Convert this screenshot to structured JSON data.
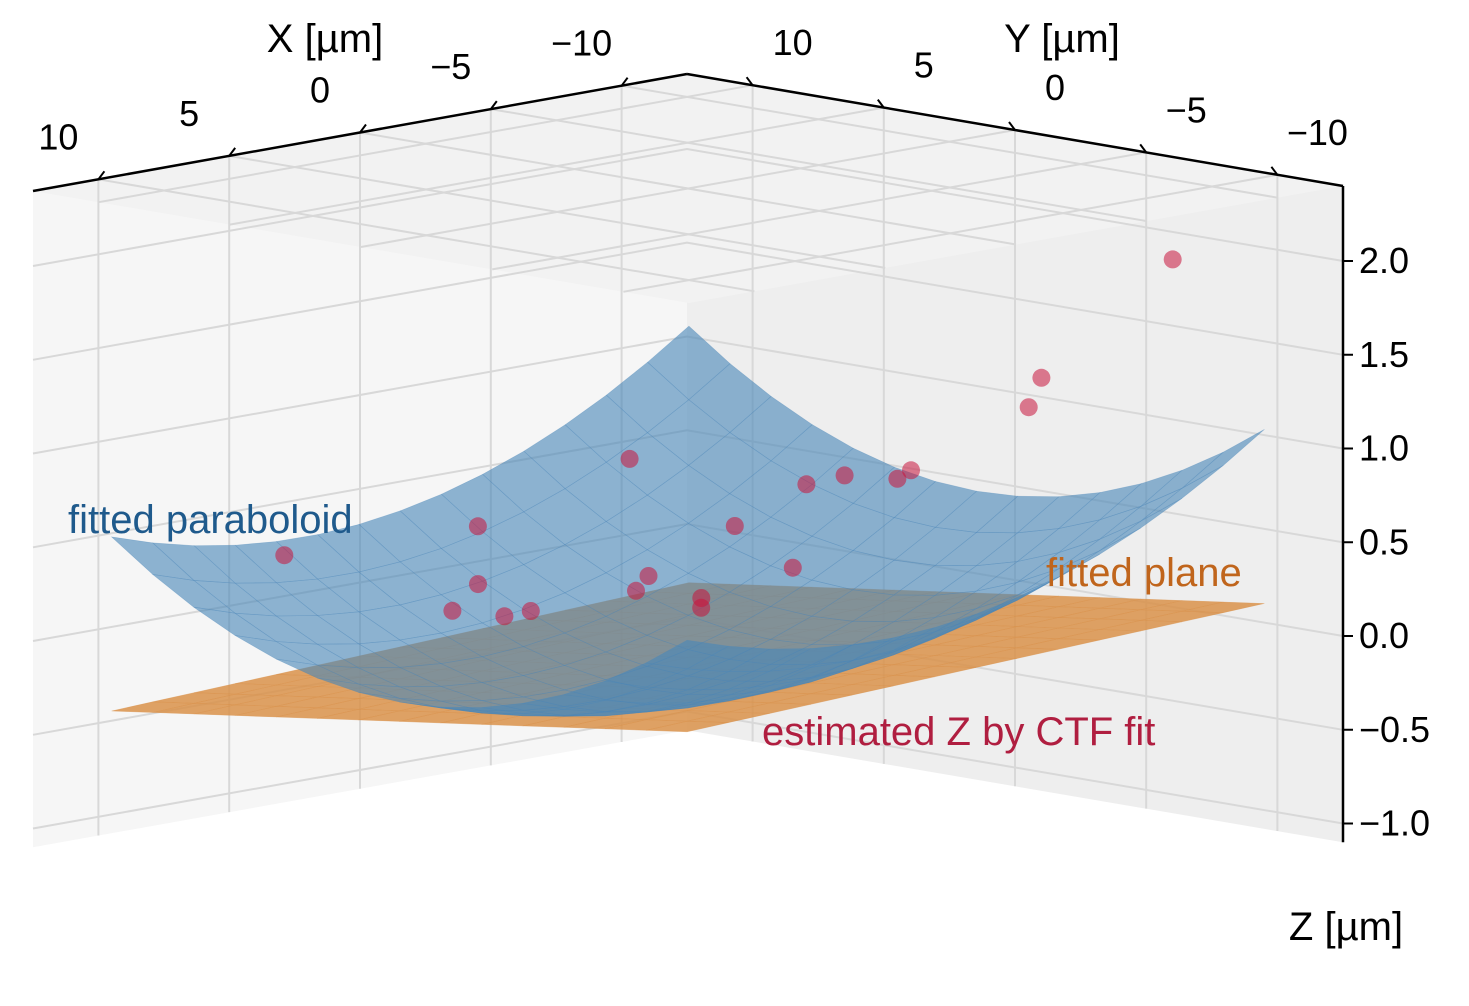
{
  "chart_data": {
    "type": "scatter",
    "subtype": "3d-surface-with-scatter",
    "axes": {
      "x": {
        "label": "X [µm]",
        "ticks": [
          10,
          5,
          0,
          -5,
          -10
        ],
        "tick_labels": [
          "10",
          "5",
          "0",
          "−5",
          "−10"
        ],
        "range": [
          -12.5,
          12.5
        ]
      },
      "y": {
        "label": "Y [µm]",
        "ticks": [
          10,
          5,
          0,
          -5,
          -10
        ],
        "tick_labels": [
          "10",
          "5",
          "0",
          "−5",
          "−10"
        ],
        "range": [
          -12.5,
          12.5
        ]
      },
      "z": {
        "label": "Z [µm]",
        "ticks": [
          2.0,
          1.5,
          1.0,
          0.5,
          0.0,
          -0.5,
          -1.0
        ],
        "tick_labels": [
          "2.0",
          "1.5",
          "1.0",
          "0.5",
          "0.0",
          "−0.5",
          "−1.0"
        ],
        "range": [
          -1.1,
          2.4
        ]
      }
    },
    "grid": true,
    "paraboloid": {
      "a": 0.005,
      "b": 0.0035,
      "c": 0.05,
      "d": -0.075,
      "e": -0.2
    },
    "plane": {
      "c": 0.03,
      "d": -0.055,
      "e": -0.1
    },
    "points_estimated_z": [
      {
        "x": -8.3,
        "y": 10.5,
        "z": 0.5
      },
      {
        "x": -2.2,
        "y": 10.2,
        "z": 0.3
      },
      {
        "x": 5.4,
        "y": 10.0,
        "z": 0.34
      },
      {
        "x": -10.5,
        "y": 4.5,
        "z": 0.5
      },
      {
        "x": -6.0,
        "y": 4.2,
        "z": 0.35
      },
      {
        "x": -2.0,
        "y": 3.5,
        "z": 0.2
      },
      {
        "x": 3.0,
        "y": 3.0,
        "z": 0.15
      },
      {
        "x": 6.5,
        "y": 2.5,
        "z": 0.25
      },
      {
        "x": -10.5,
        "y": -3.0,
        "z": 1.2
      },
      {
        "x": -6.0,
        "y": -2.0,
        "z": 0.75
      },
      {
        "x": -1.5,
        "y": -2.5,
        "z": 0.4
      },
      {
        "x": 2.5,
        "y": -3.0,
        "z": 0.35
      },
      {
        "x": 6.0,
        "y": -4.0,
        "z": 0.5
      },
      {
        "x": -9.5,
        "y": -9.0,
        "z": 2.0
      },
      {
        "x": -5.0,
        "y": -8.0,
        "z": 1.3
      },
      {
        "x": 0.0,
        "y": -8.5,
        "z": 1.1
      },
      {
        "x": 4.5,
        "y": -9.0,
        "z": 1.15
      },
      {
        "x": -1.0,
        "y": 9.0,
        "z": 0.05
      },
      {
        "x": 1.0,
        "y": 6.0,
        "z": 0.0
      },
      {
        "x": 0.5,
        "y": -1.0,
        "z": 0.2
      }
    ]
  },
  "legend_text": {
    "paraboloid": "fitted paraboloid",
    "plane": "fitted plane",
    "points": "estimated Z by CTF fit"
  },
  "colors": {
    "paraboloid": "#4a87b8",
    "paraboloid_text": "#1f5a8c",
    "plane": "#d9924a",
    "plane_text": "#c0651c",
    "points": "#c8143c",
    "points_text": "#b01e40",
    "pane_left": "#f6f6f6",
    "pane_right": "#eeeeee",
    "pane_back": "#f2f2f2",
    "grid": "#d8d8d8"
  }
}
